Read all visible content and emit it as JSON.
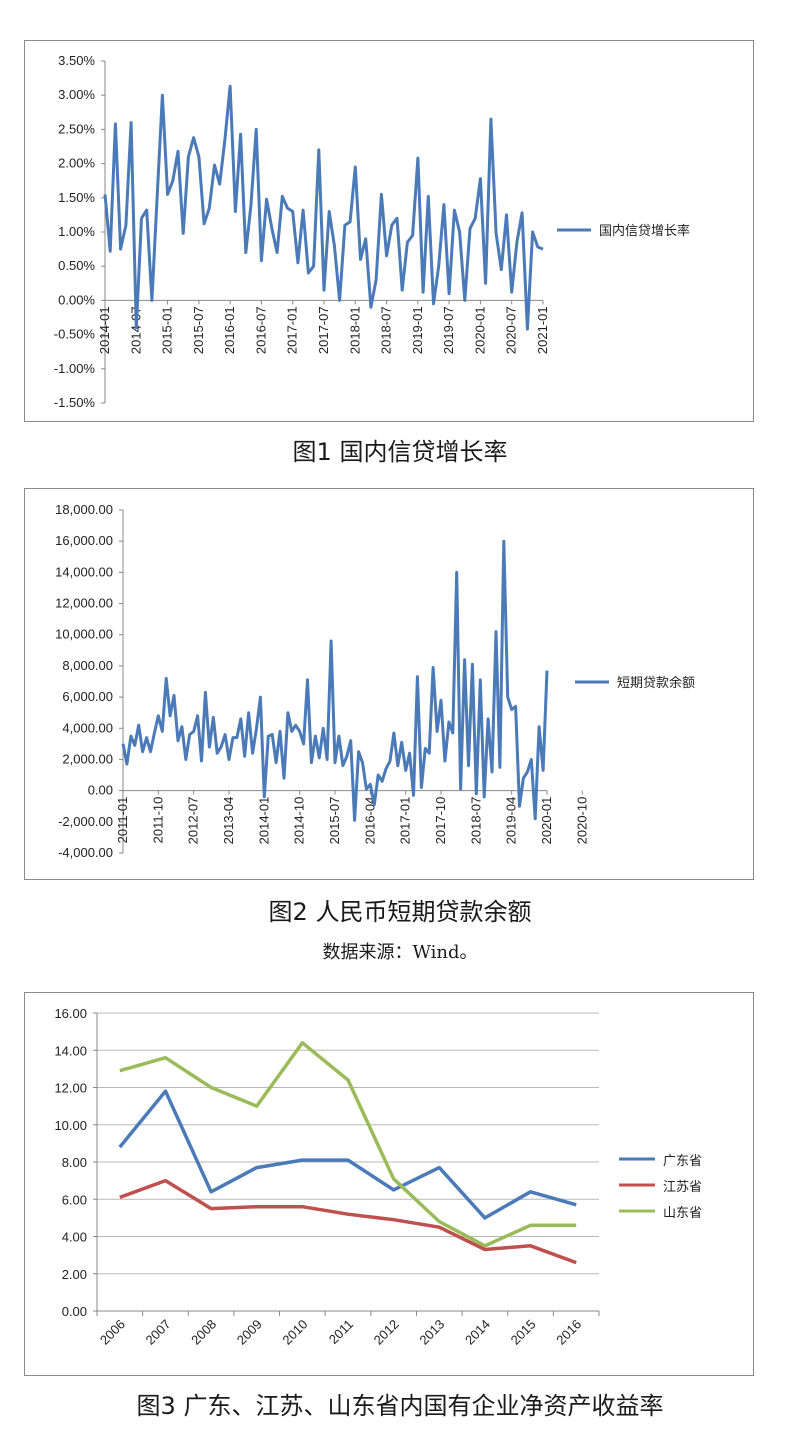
{
  "captions": {
    "fig1": "图1  国内信贷增长率",
    "fig2": "图2  人民币短期贷款余额",
    "source": "数据来源：Wind。",
    "fig3": "图3  广东、江苏、山东省内国有企业净资产收益率"
  },
  "chart_data": [
    {
      "type": "line",
      "y_tick_labels": [
        "3.50%",
        "3.00%",
        "2.50%",
        "2.00%",
        "1.50%",
        "1.00%",
        "0.50%",
        "0.00%",
        "-0.50%",
        "-1.00%",
        "-1.50%"
      ],
      "ylim": [
        -1.5,
        3.5
      ],
      "x_tick_labels": [
        "2014-01",
        "2014-07",
        "2015-01",
        "2015-07",
        "2016-01",
        "2016-07",
        "2017-01",
        "2017-07",
        "2018-01",
        "2018-07",
        "2019-01",
        "2019-07",
        "2020-01",
        "2020-07",
        "2021-01"
      ],
      "x_start": "2014-01",
      "series": [
        {
          "name": "国内信贷增长率",
          "color": "#4a7ab8",
          "values": [
            1.55,
            0.72,
            2.58,
            0.75,
            1.1,
            2.6,
            -0.4,
            1.2,
            1.32,
            0.0,
            1.5,
            3.0,
            1.55,
            1.75,
            2.18,
            0.98,
            2.1,
            2.38,
            2.1,
            1.12,
            1.35,
            1.98,
            1.7,
            2.35,
            3.13,
            1.3,
            2.43,
            0.7,
            1.4,
            2.5,
            0.58,
            1.48,
            1.05,
            0.7,
            1.52,
            1.35,
            1.3,
            0.55,
            1.32,
            0.4,
            0.5,
            2.2,
            0.15,
            1.3,
            0.8,
            0.0,
            1.1,
            1.15,
            1.95,
            0.6,
            0.9,
            -0.1,
            0.3,
            1.55,
            0.65,
            1.1,
            1.2,
            0.15,
            0.85,
            0.95,
            2.08,
            0.12,
            1.52,
            -0.05,
            0.5,
            1.4,
            0.1,
            1.32,
            1.0,
            0.0,
            1.05,
            1.2,
            1.78,
            0.25,
            2.65,
            0.98,
            0.45,
            1.25,
            0.12,
            0.85,
            1.28,
            -0.42,
            1.0,
            0.78,
            0.75
          ]
        }
      ]
    },
    {
      "type": "line",
      "y_tick_labels": [
        "18,000.00",
        "16,000.00",
        "14,000.00",
        "12,000.00",
        "10,000.00",
        "8,000.00",
        "6,000.00",
        "4,000.00",
        "2,000.00",
        "0.00",
        "-2,000.00",
        "-4,000.00"
      ],
      "ylim": [
        -4000,
        18000
      ],
      "x_tick_labels": [
        "2011-01",
        "2011-10",
        "2012-07",
        "2013-04",
        "2014-01",
        "2014-10",
        "2015-07",
        "2016-04",
        "2017-01",
        "2017-10",
        "2018-07",
        "2019-04",
        "2020-01",
        "2020-10"
      ],
      "x_start": "2011-01",
      "series": [
        {
          "name": "短期贷款余额",
          "color": "#4a7ab8",
          "values": [
            3000,
            1700,
            3500,
            2900,
            4200,
            2500,
            3400,
            2500,
            3700,
            4800,
            3800,
            7200,
            4800,
            6100,
            3200,
            4100,
            2000,
            3600,
            3800,
            4800,
            1900,
            6300,
            2800,
            4700,
            2400,
            2800,
            3600,
            2000,
            3400,
            3400,
            4600,
            2200,
            5000,
            2400,
            4000,
            6000,
            -400,
            3500,
            3600,
            1800,
            3800,
            800,
            5000,
            3800,
            4200,
            3800,
            3000,
            7100,
            1800,
            3500,
            2100,
            4000,
            2000,
            9600,
            1800,
            3500,
            1600,
            2200,
            3200,
            -1900,
            2500,
            1800,
            100,
            400,
            -900,
            1000,
            600,
            1400,
            1900,
            3700,
            1600,
            3100,
            1300,
            2400,
            -300,
            7300,
            200,
            2700,
            2400,
            7900,
            3800,
            5800,
            1900,
            4400,
            3700,
            14000,
            100,
            8400,
            1600,
            8100,
            -200,
            7100,
            -400,
            4600,
            1200,
            10200,
            1500,
            16000,
            6000,
            5200,
            5400,
            -1000,
            800,
            1200,
            2000,
            -1800,
            4100,
            1300,
            7700
          ]
        }
      ]
    },
    {
      "type": "line",
      "y_tick_labels": [
        "16.00",
        "14.00",
        "12.00",
        "10.00",
        "8.00",
        "6.00",
        "4.00",
        "2.00",
        "0.00"
      ],
      "ylim": [
        0,
        16
      ],
      "categories": [
        "2006",
        "2007",
        "2008",
        "2009",
        "2010",
        "2011",
        "2012",
        "2013",
        "2014",
        "2015",
        "2016"
      ],
      "series": [
        {
          "name": "广东省",
          "color": "#4a7ab8",
          "values": [
            8.8,
            11.8,
            6.4,
            7.7,
            8.1,
            8.1,
            6.5,
            7.7,
            5.0,
            6.4,
            5.7
          ]
        },
        {
          "name": "江苏省",
          "color": "#c0504d",
          "values": [
            6.1,
            7.0,
            5.5,
            5.6,
            5.6,
            5.2,
            4.9,
            4.5,
            3.3,
            3.5,
            2.6
          ]
        },
        {
          "name": "山东省",
          "color": "#9bbb59",
          "values": [
            12.9,
            13.6,
            12.0,
            11.0,
            14.4,
            12.4,
            7.1,
            4.8,
            3.5,
            4.6,
            4.6
          ]
        }
      ]
    }
  ]
}
